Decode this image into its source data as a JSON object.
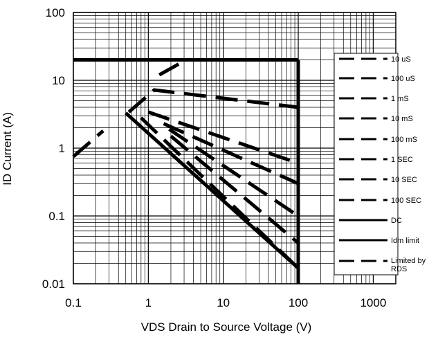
{
  "chart_data": {
    "type": "line",
    "title": "",
    "xlabel": "VDS Drain to Source Voltage (V)",
    "ylabel": "ID Current (A)",
    "xscale": "log",
    "yscale": "log",
    "xlim": [
      0.1,
      2000
    ],
    "ylim": [
      0.01,
      100
    ],
    "x_tick_labels": [
      "0.1",
      "1",
      "10",
      "100",
      "1000"
    ],
    "x_ticks": [
      0.1,
      1,
      10,
      100,
      1000
    ],
    "y_tick_labels": [
      "0.01",
      "0.1",
      "1",
      "10",
      "100"
    ],
    "y_ticks": [
      0.01,
      0.1,
      1,
      10,
      100
    ],
    "grid": "major and minor",
    "legend_position": "right",
    "legend_labels": {
      "us10": "10 uS",
      "us100": "100 uS",
      "ms1": "1 mS",
      "ms10": "10 mS",
      "ms100": "100 mS",
      "sec1": "1 SEC",
      "sec10": "10 SEC",
      "sec100": "100 SEC",
      "dc": "DC",
      "idm": "Idm limit",
      "rds_line1": "Limited by",
      "rds_line2": "RDS"
    },
    "series": [
      {
        "name": "10 uS",
        "style": "dashed",
        "points": [
          [
            2.8,
            20
          ],
          [
            100,
            20
          ]
        ]
      },
      {
        "name": "100 uS",
        "style": "dashed",
        "points": [
          [
            1.4,
            12
          ],
          [
            3.2,
            20
          ]
        ]
      },
      {
        "name": "1 mS",
        "style": "dashed",
        "points": [
          [
            0.55,
            3.4
          ],
          [
            1.2,
            7.2
          ],
          [
            100,
            4
          ]
        ]
      },
      {
        "name": "10 mS",
        "style": "dashed",
        "points": [
          [
            1.0,
            3.4
          ],
          [
            100,
            0.6
          ]
        ]
      },
      {
        "name": "100 mS",
        "style": "dashed",
        "points": [
          [
            1.6,
            2.3
          ],
          [
            100,
            0.3
          ]
        ]
      },
      {
        "name": "1 SEC",
        "style": "dashed",
        "points": [
          [
            1.9,
            1.9
          ],
          [
            100,
            0.1
          ]
        ]
      },
      {
        "name": "10 SEC",
        "style": "dashed",
        "points": [
          [
            2.0,
            1.5
          ],
          [
            100,
            0.04
          ]
        ]
      },
      {
        "name": "100 SEC",
        "style": "dashed",
        "points": [
          [
            0.8,
            2.8
          ],
          [
            100,
            0.017
          ]
        ]
      },
      {
        "name": "DC",
        "style": "solid",
        "points": [
          [
            0.5,
            3.3
          ],
          [
            100,
            0.017
          ]
        ]
      },
      {
        "name": "Idm limit",
        "style": "solid",
        "points": [
          [
            0.1,
            20
          ],
          [
            100,
            20
          ]
        ]
      },
      {
        "name": "Limited by RDS",
        "style": "dashed",
        "points": [
          [
            0.1,
            0.75
          ],
          [
            0.25,
            1.8
          ]
        ]
      },
      {
        "name": "",
        "style": "solid",
        "points": [
          [
            100,
            20
          ],
          [
            100,
            0.01
          ]
        ]
      }
    ]
  }
}
